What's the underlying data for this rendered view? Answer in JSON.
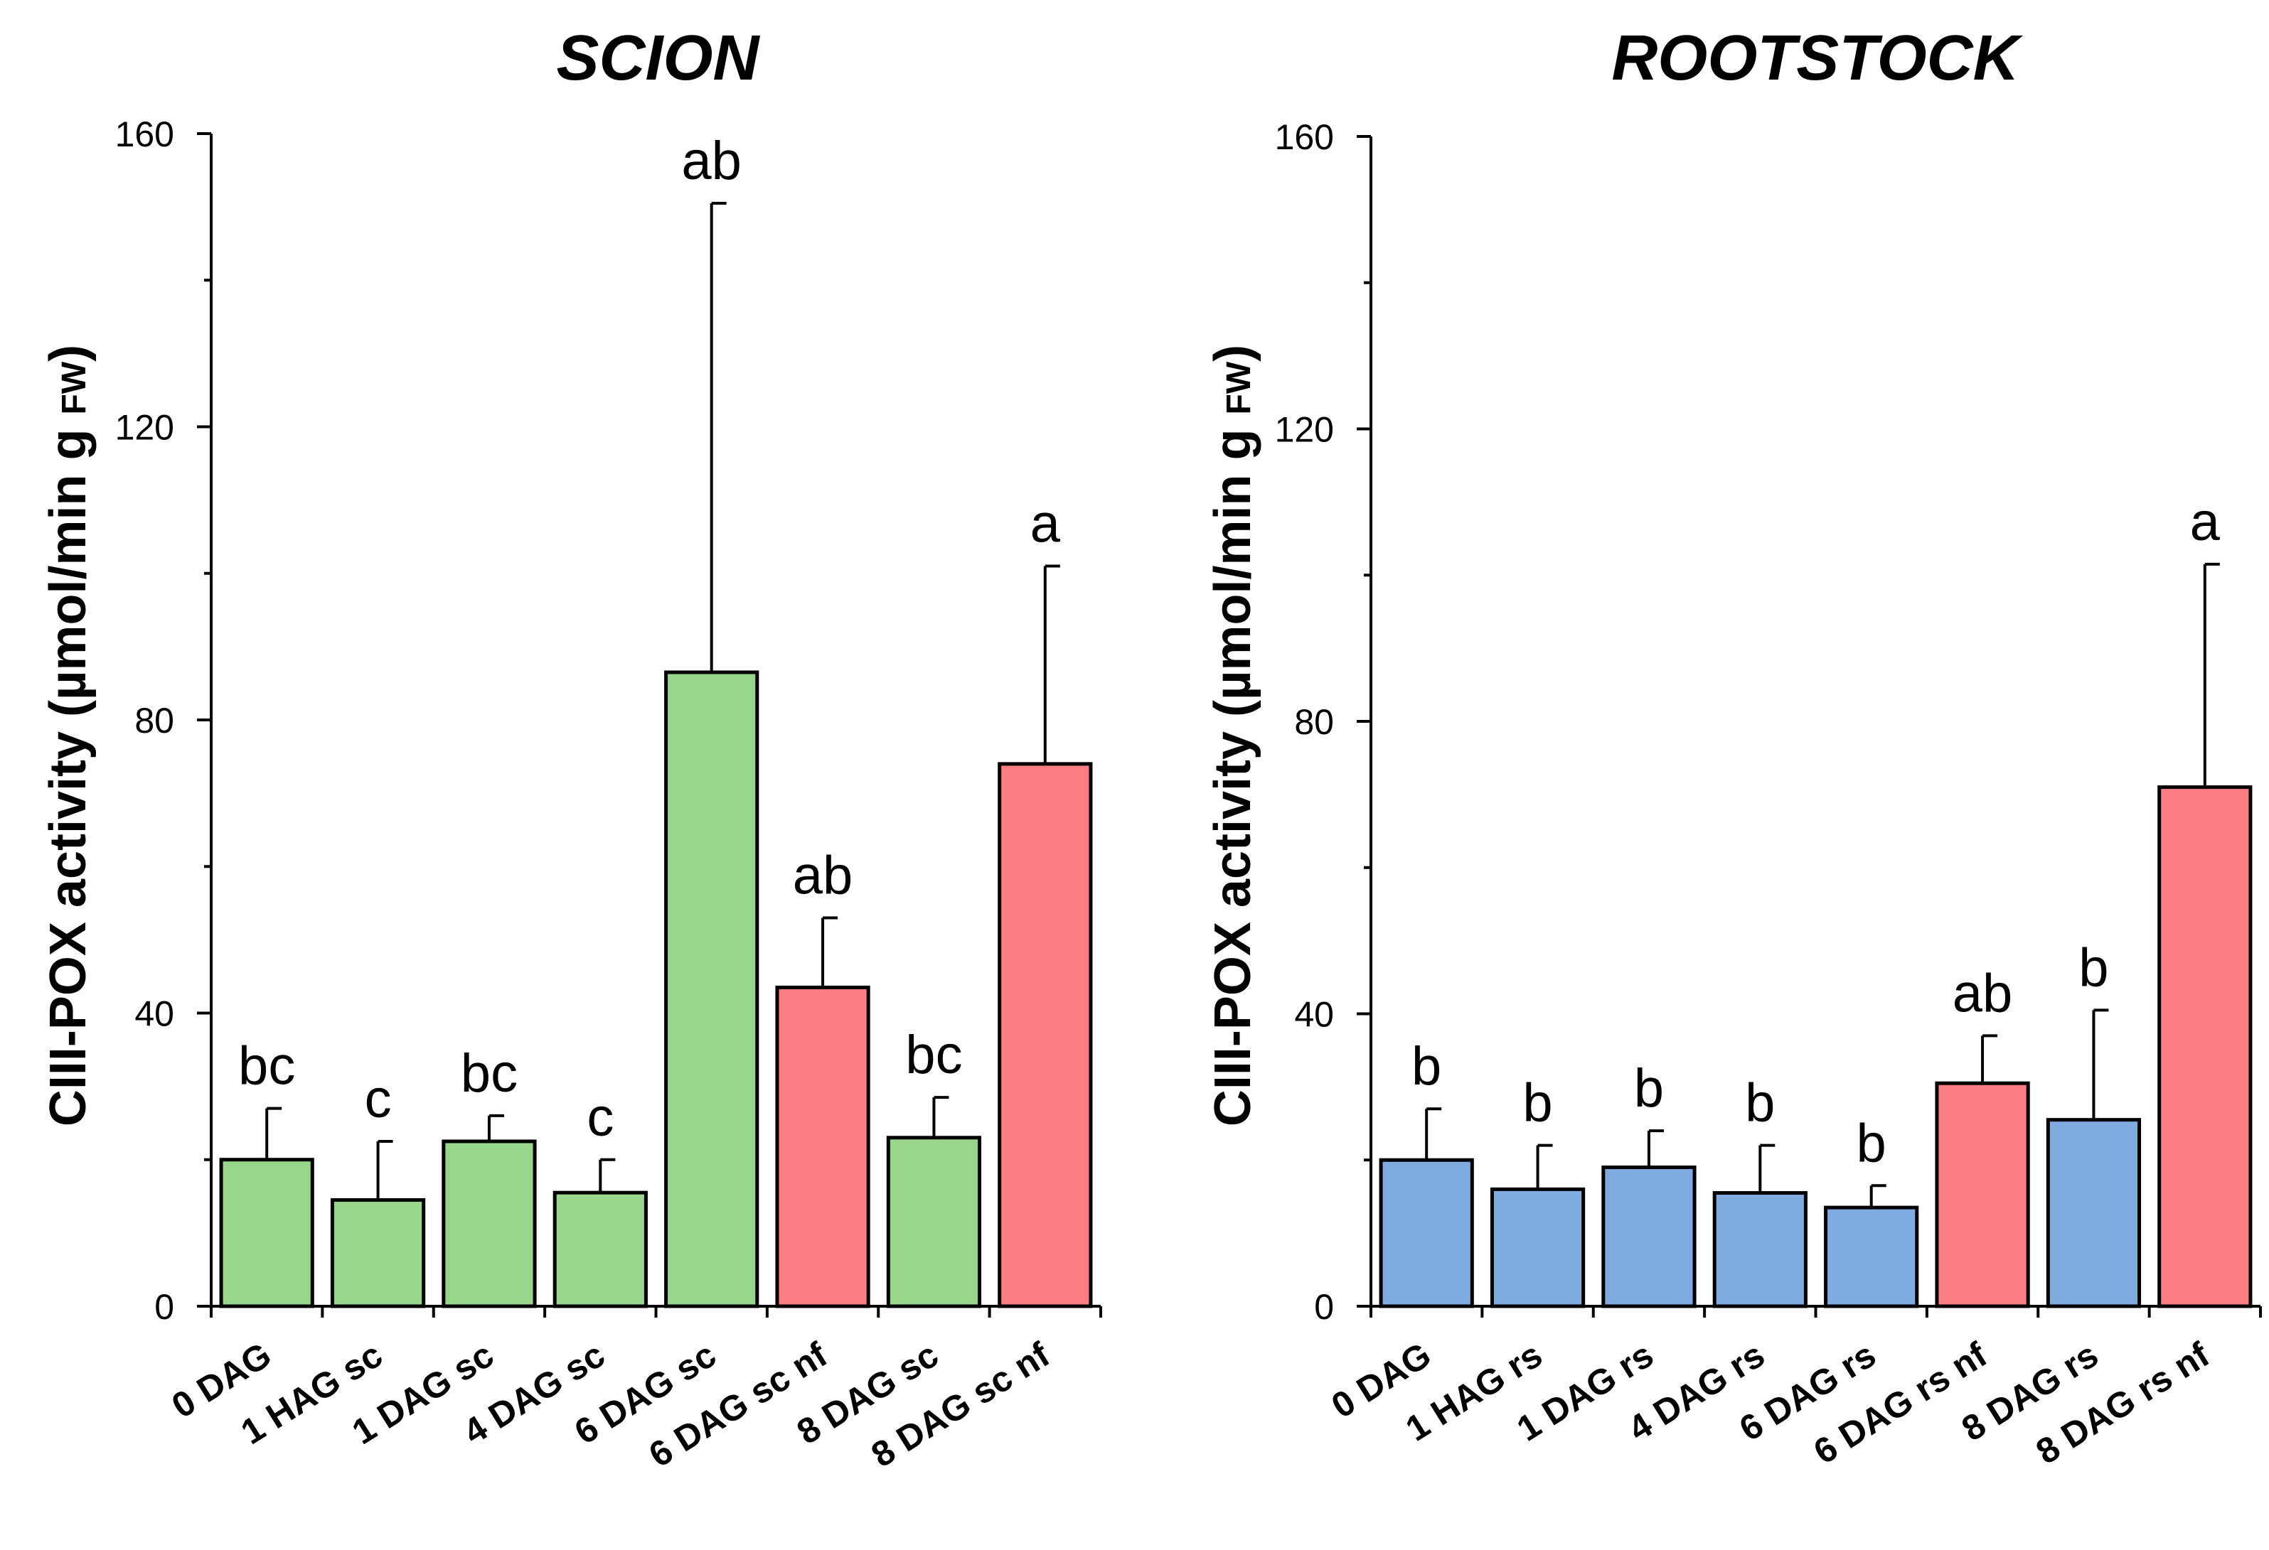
{
  "colors": {
    "green": "#97d68b",
    "red": "#fa7e82",
    "blue": "#7fabe0",
    "axis": "#000000"
  },
  "chart_data": [
    {
      "type": "bar",
      "title": "SCION",
      "ylabel_main": "CIII-POX activity (µmol/min g ",
      "ylabel_sub": "FW",
      "ylabel_close": ")",
      "ylim": [
        0,
        160
      ],
      "yticks": [
        0,
        40,
        80,
        120,
        160
      ],
      "ytick_labels": [
        "0",
        "40",
        "80",
        "120",
        "160"
      ],
      "categories": [
        "0 DAG",
        "1 HAG sc",
        "1 DAG sc",
        "4 DAG sc",
        "6 DAG sc",
        "6 DAG sc nf",
        "8 DAG sc",
        "8 DAG sc nf"
      ],
      "values": [
        20,
        14.5,
        22.5,
        15.5,
        86.5,
        43.5,
        23,
        74
      ],
      "errors": [
        7,
        8,
        3.5,
        4.5,
        64,
        9.5,
        5.5,
        27
      ],
      "colors": [
        "green",
        "green",
        "green",
        "green",
        "green",
        "red",
        "green",
        "red"
      ],
      "significance": [
        "bc",
        "c",
        "bc",
        "c",
        "ab",
        "ab",
        "bc",
        "a"
      ]
    },
    {
      "type": "bar",
      "title": "ROOTSTOCK",
      "ylabel_main": "CIII-POX activity (µmol/min g ",
      "ylabel_sub": "FW",
      "ylabel_close": ")",
      "ylim": [
        0,
        160
      ],
      "yticks": [
        0,
        40,
        80,
        120,
        160
      ],
      "ytick_labels": [
        "0",
        "40",
        "80",
        "120",
        "160"
      ],
      "categories": [
        "0 DAG",
        "1 HAG rs",
        "1 DAG rs",
        "4 DAG rs",
        "6 DAG rs",
        "6 DAG rs nf",
        "8 DAG rs",
        "8 DAG rs nf"
      ],
      "values": [
        20,
        16,
        19,
        15.5,
        13.5,
        30.5,
        25.5,
        71
      ],
      "errors": [
        7,
        6,
        5,
        6.5,
        3,
        6.5,
        15,
        30.5
      ],
      "colors": [
        "blue",
        "blue",
        "blue",
        "blue",
        "blue",
        "red",
        "blue",
        "red"
      ],
      "significance": [
        "b",
        "b",
        "b",
        "b",
        "b",
        "ab",
        "b",
        "a"
      ]
    }
  ]
}
